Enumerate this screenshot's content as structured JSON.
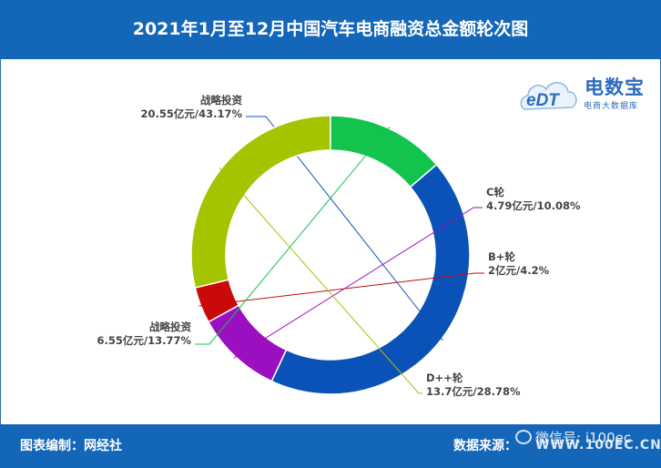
{
  "header": {
    "title": "2021年1月至12月中国汽车电商融资总金额轮次图"
  },
  "footer": {
    "left": "图表编制：网经社",
    "right": "数据来源：",
    "url": "WWW.100EC.CN",
    "watermark": "微信号: i100ec"
  },
  "logo": {
    "mark": "eDT",
    "name": "电数宝",
    "sub": "电商大数据库"
  },
  "colors": {
    "header_bg": "#1466b8",
    "logo": "#2a6bbf"
  },
  "chart_data": {
    "type": "pie",
    "variant": "donut",
    "unit": "亿元",
    "title": "",
    "slices": [
      {
        "label": "战略投资",
        "value": 20.55,
        "percent": 43.17,
        "value_text": "20.55亿元/43.17%",
        "color": "#0b52b8"
      },
      {
        "label": "C轮",
        "value": 4.79,
        "percent": 10.08,
        "value_text": "4.79亿元/10.08%",
        "color": "#9b0fc0"
      },
      {
        "label": "B+轮",
        "value": 2,
        "percent": 4.2,
        "value_text": "2亿元/4.2%",
        "color": "#c80a0a"
      },
      {
        "label": "D++轮",
        "value": 13.7,
        "percent": 28.78,
        "value_text": "13.7亿元/28.78%",
        "color": "#a5c400"
      },
      {
        "label": "战略投资",
        "value": 6.55,
        "percent": 13.77,
        "value_text": "6.55亿元/13.77%",
        "color": "#12c44e"
      }
    ]
  }
}
